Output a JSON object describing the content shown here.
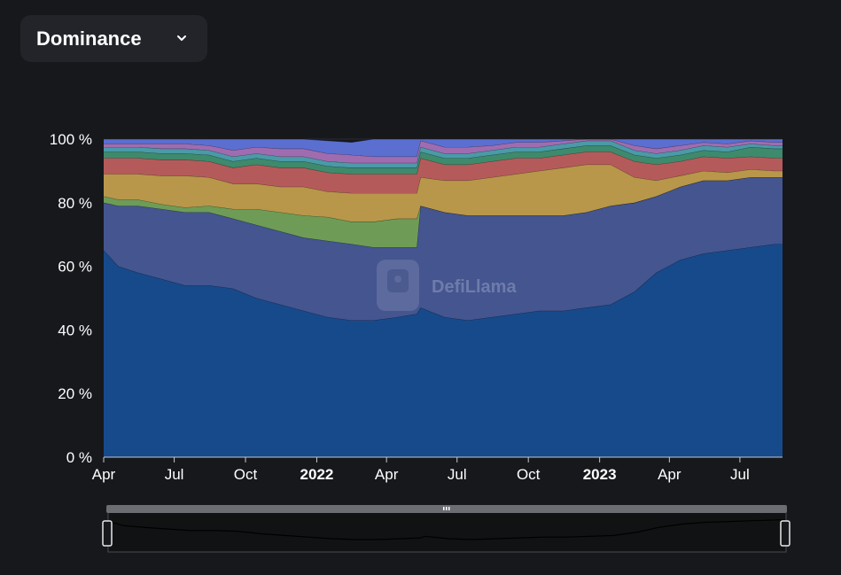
{
  "header": {
    "dropdown_label": "Dominance"
  },
  "watermark": "DefiLlama",
  "colors": {
    "background": "#17181c",
    "dropdown_bg": "#222429",
    "series": [
      "#174a8b",
      "#44558f",
      "#6e9c57",
      "#b8974a",
      "#b55a5a",
      "#3e8a6c",
      "#4a9aa8",
      "#a06cb0",
      "#5a6fd0"
    ]
  },
  "chart_data": {
    "type": "area",
    "stacked": true,
    "percent": true,
    "x_ticks": [
      {
        "label": "Apr",
        "date": "2021-04-01",
        "bold": false
      },
      {
        "label": "Jul",
        "date": "2021-07-01",
        "bold": false
      },
      {
        "label": "Oct",
        "date": "2021-10-01",
        "bold": false
      },
      {
        "label": "2022",
        "date": "2022-01-01",
        "bold": true
      },
      {
        "label": "Apr",
        "date": "2022-04-01",
        "bold": false
      },
      {
        "label": "Jul",
        "date": "2022-07-01",
        "bold": false
      },
      {
        "label": "Oct",
        "date": "2022-10-01",
        "bold": false
      },
      {
        "label": "2023",
        "date": "2023-01-01",
        "bold": true
      },
      {
        "label": "Apr",
        "date": "2023-04-01",
        "bold": false
      },
      {
        "label": "Jul",
        "date": "2023-07-01",
        "bold": false
      }
    ],
    "y_ticks": [
      "0 %",
      "20 %",
      "40 %",
      "60 %",
      "80 %",
      "100 %"
    ],
    "ylim": [
      0,
      100
    ],
    "grid": true,
    "dates": [
      "2021-04-01",
      "2021-04-20",
      "2021-05-15",
      "2021-06-15",
      "2021-07-15",
      "2021-08-15",
      "2021-09-15",
      "2021-10-15",
      "2021-11-15",
      "2021-12-15",
      "2022-01-15",
      "2022-02-15",
      "2022-03-15",
      "2022-04-15",
      "2022-05-10",
      "2022-05-15",
      "2022-06-15",
      "2022-07-15",
      "2022-08-15",
      "2022-09-15",
      "2022-10-15",
      "2022-11-15",
      "2022-12-15",
      "2023-01-15",
      "2023-02-15",
      "2023-03-15",
      "2023-04-15",
      "2023-05-15",
      "2023-06-15",
      "2023-07-15",
      "2023-08-15",
      "2023-08-25"
    ],
    "series": [
      {
        "values": [
          65,
          60,
          58,
          56,
          54,
          54,
          53,
          50,
          48,
          46,
          44,
          43,
          43,
          44,
          45,
          47,
          44,
          43,
          44,
          45,
          46,
          46,
          47,
          48,
          52,
          58,
          62,
          64,
          65,
          66,
          67,
          67
        ]
      },
      {
        "values": [
          15,
          19,
          21,
          22,
          23,
          23,
          22,
          23,
          23,
          23,
          24,
          24,
          23,
          22,
          21,
          32,
          33,
          33,
          32,
          31,
          30,
          30,
          30,
          31,
          28,
          24,
          23,
          23,
          22,
          22,
          21,
          21
        ]
      },
      {
        "values": [
          2,
          2,
          2,
          1.5,
          1.5,
          2,
          3,
          5,
          6,
          7,
          7.5,
          7,
          8,
          9,
          9,
          0,
          0,
          0,
          0,
          0,
          0,
          0,
          0,
          0,
          0,
          0,
          0,
          0,
          0,
          0,
          0,
          0
        ]
      },
      {
        "values": [
          7,
          8,
          8,
          9,
          10,
          9,
          8,
          8,
          8,
          9,
          8,
          9,
          9,
          8,
          8,
          9,
          10,
          11,
          12,
          13,
          14,
          15,
          15,
          13,
          8,
          5,
          3.5,
          3,
          2.5,
          2.5,
          2,
          2
        ]
      },
      {
        "values": [
          5,
          5,
          5,
          5,
          5,
          5,
          5,
          6,
          6,
          6,
          6,
          6,
          6,
          6,
          6,
          6,
          5,
          5,
          5,
          5,
          4,
          4,
          4,
          4,
          5,
          5,
          4.5,
          4.5,
          4.5,
          4,
          4,
          4
        ]
      },
      {
        "values": [
          2,
          2,
          2,
          2,
          2,
          2,
          2,
          2,
          2,
          2,
          2,
          2,
          2,
          2,
          2,
          2,
          2,
          2,
          2,
          2,
          2,
          2,
          2,
          2,
          2,
          2,
          2,
          2,
          2,
          3,
          3,
          3
        ]
      },
      {
        "values": [
          1.5,
          1.5,
          1.5,
          1.5,
          1.5,
          1.5,
          1.5,
          1.5,
          1.5,
          1.5,
          1.5,
          1.5,
          1.5,
          1.5,
          1.5,
          1.5,
          1.5,
          1.5,
          1.5,
          1.5,
          1.5,
          1.5,
          1.5,
          1.5,
          1.5,
          1.5,
          1.5,
          1.5,
          1.5,
          1,
          1,
          1
        ]
      },
      {
        "values": [
          1,
          1,
          1,
          1.5,
          1.5,
          1.5,
          2,
          2,
          2.5,
          2.5,
          2.5,
          2.5,
          2,
          2,
          2,
          2,
          2,
          2,
          1.5,
          1.5,
          1.5,
          1,
          1,
          1,
          1.5,
          1.5,
          1.5,
          1,
          1,
          1,
          1,
          1
        ]
      },
      {
        "values": [
          1.5,
          1.5,
          1.5,
          1.5,
          1.5,
          2,
          3.5,
          2.5,
          3,
          3,
          4,
          4,
          5.5,
          5.5,
          5.5,
          0.5,
          2.5,
          2.5,
          2,
          1,
          1,
          1,
          0.5,
          0.5,
          2,
          4,
          2,
          1,
          1.5,
          0.5,
          1,
          1
        ]
      }
    ]
  }
}
